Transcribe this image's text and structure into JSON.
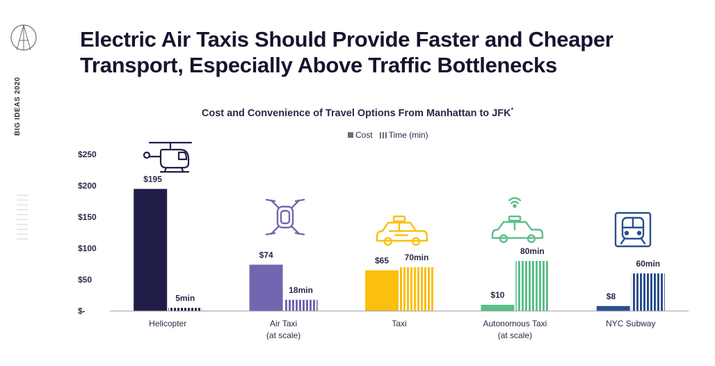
{
  "side_label": "BIG IDEAS 2020",
  "title": "Electric Air Taxis Should Provide Faster and Cheaper Transport, Especially Above Traffic Bottlenecks",
  "chart_data": {
    "type": "bar",
    "title": "Cost and Convenience of Travel Options From Manhattan to JFK",
    "title_mark": "*",
    "categories": [
      {
        "line1": "Helicopter",
        "line2": ""
      },
      {
        "line1": "Air Taxi",
        "line2": "(at scale)"
      },
      {
        "line1": "Taxi",
        "line2": ""
      },
      {
        "line1": "Autonomous Taxi",
        "line2": "(at scale)"
      },
      {
        "line1": "NYC Subway",
        "line2": ""
      }
    ],
    "series": [
      {
        "name": "Cost",
        "values": [
          195,
          74,
          65,
          10,
          8
        ],
        "labels": [
          "$195",
          "$74",
          "$65",
          "$10",
          "$8"
        ]
      },
      {
        "name": "Time (min)",
        "values": [
          5,
          18,
          70,
          80,
          60
        ],
        "labels": [
          "5min",
          "18min",
          "70min",
          "80min",
          "60min"
        ]
      }
    ],
    "colors": [
      "#1f1d47",
      "#7266b0",
      "#fbbf0f",
      "#5cbf89",
      "#2b4f8c"
    ],
    "ylim": [
      0,
      250
    ],
    "yticks": [
      0,
      50,
      100,
      150,
      200,
      250
    ],
    "ytick_labels": [
      "$-",
      "$50",
      "$100",
      "$150",
      "$200",
      "$250"
    ],
    "icons": [
      "helicopter-icon",
      "drone-icon",
      "taxi-icon",
      "autonomous-taxi-icon",
      "subway-train-icon"
    ],
    "legend_position": "top-center",
    "grid": false
  }
}
